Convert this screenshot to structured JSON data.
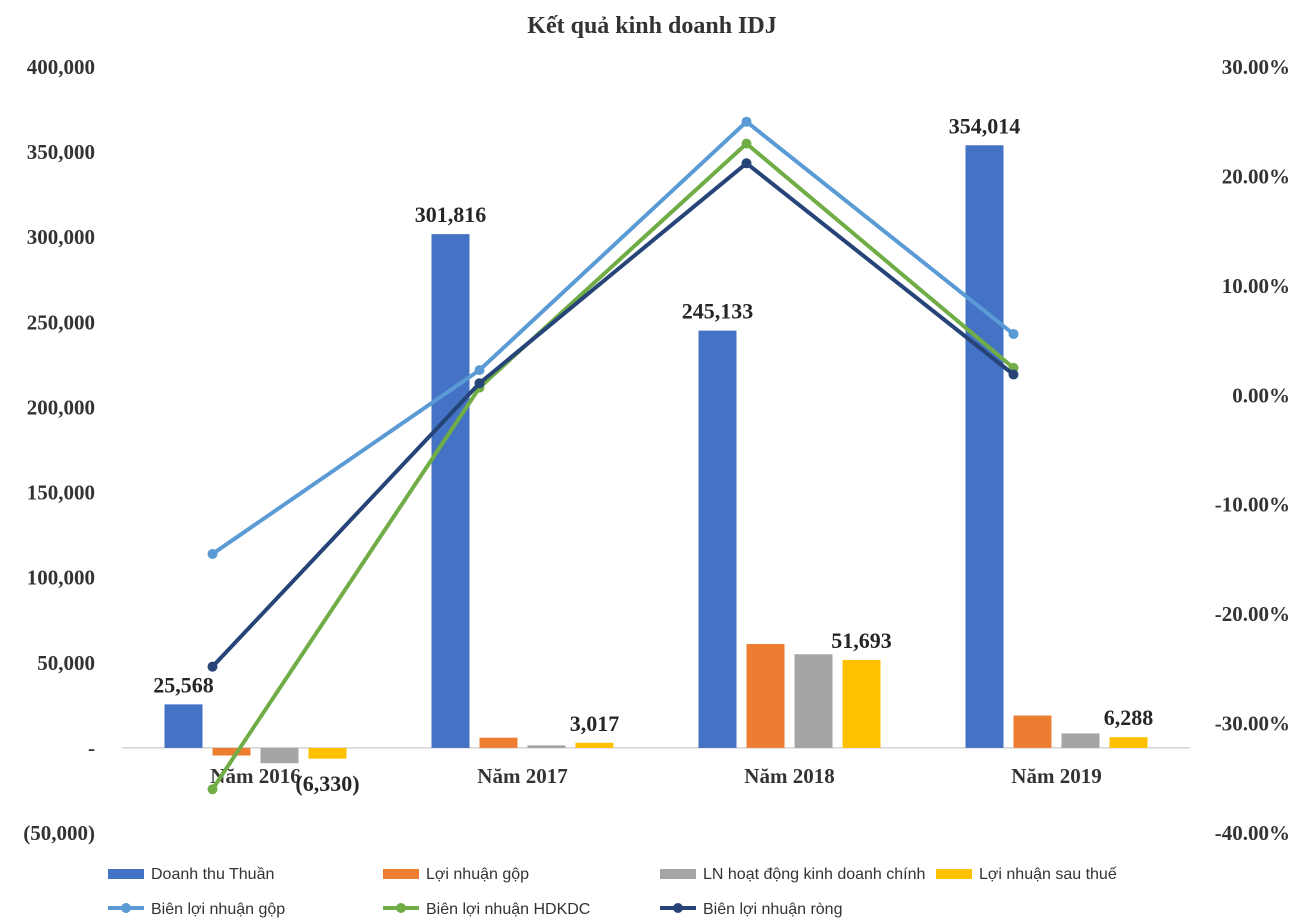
{
  "chart_data": {
    "type": "bar",
    "title": "Kết quả kinh doanh IDJ",
    "categories": [
      "Năm 2016",
      "Năm 2017",
      "Năm 2018",
      "Năm 2019"
    ],
    "left_axis": {
      "ylim": [
        -50000,
        400000
      ],
      "ticks": [
        -50000,
        0,
        50000,
        100000,
        150000,
        200000,
        250000,
        300000,
        350000,
        400000
      ],
      "tick_labels": [
        "(50,000)",
        "-",
        "50,000",
        "100,000",
        "150,000",
        "200,000",
        "250,000",
        "300,000",
        "350,000",
        "400,000"
      ]
    },
    "right_axis": {
      "ylim": [
        -0.4,
        0.3
      ],
      "ticks": [
        -0.4,
        -0.3,
        -0.2,
        -0.1,
        0.0,
        0.1,
        0.2,
        0.3
      ],
      "tick_labels": [
        "-40.00%",
        "-30.00%",
        "-20.00%",
        "-10.00%",
        "0.00%",
        "10.00%",
        "20.00%",
        "30.00%"
      ]
    },
    "bar_series": [
      {
        "name": "Doanh thu Thuần",
        "color": "#4472c4",
        "values": [
          25568,
          301816,
          245133,
          354014
        ]
      },
      {
        "name": "Lợi nhuận gộp",
        "color": "#ed7d31",
        "values": [
          -4500,
          6000,
          61000,
          19000
        ]
      },
      {
        "name": "LN hoạt động kinh doanh chính",
        "color": "#a5a5a5",
        "values": [
          -9000,
          1500,
          55000,
          8500
        ]
      },
      {
        "name": "Lợi nhuận sau thuế",
        "color": "#ffc000",
        "values": [
          -6330,
          3017,
          51693,
          6288
        ]
      }
    ],
    "line_series": [
      {
        "name": "Biên lợi nhuận gộp",
        "color": "#5b9bd5",
        "values": [
          -0.145,
          0.023,
          0.25,
          0.056
        ]
      },
      {
        "name": "Biên lợi nhuận HDKDC",
        "color": "#70ad47",
        "values": [
          -0.36,
          0.007,
          0.23,
          0.025
        ]
      },
      {
        "name": "Biên lợi nhuận ròng",
        "color": "#264478",
        "values": [
          -0.248,
          0.011,
          0.212,
          0.019
        ]
      }
    ],
    "data_labels": [
      {
        "series": 0,
        "index": 0,
        "text": "25,568"
      },
      {
        "series": 0,
        "index": 1,
        "text": "301,816"
      },
      {
        "series": 0,
        "index": 2,
        "text": "245,133"
      },
      {
        "series": 0,
        "index": 3,
        "text": "354,014"
      },
      {
        "series": 3,
        "index": 0,
        "text": "(6,330)"
      },
      {
        "series": 3,
        "index": 1,
        "text": "3,017"
      },
      {
        "series": 3,
        "index": 2,
        "text": "51,693"
      },
      {
        "series": 3,
        "index": 3,
        "text": "6,288"
      }
    ],
    "legend_position": "bottom",
    "grid": false
  }
}
